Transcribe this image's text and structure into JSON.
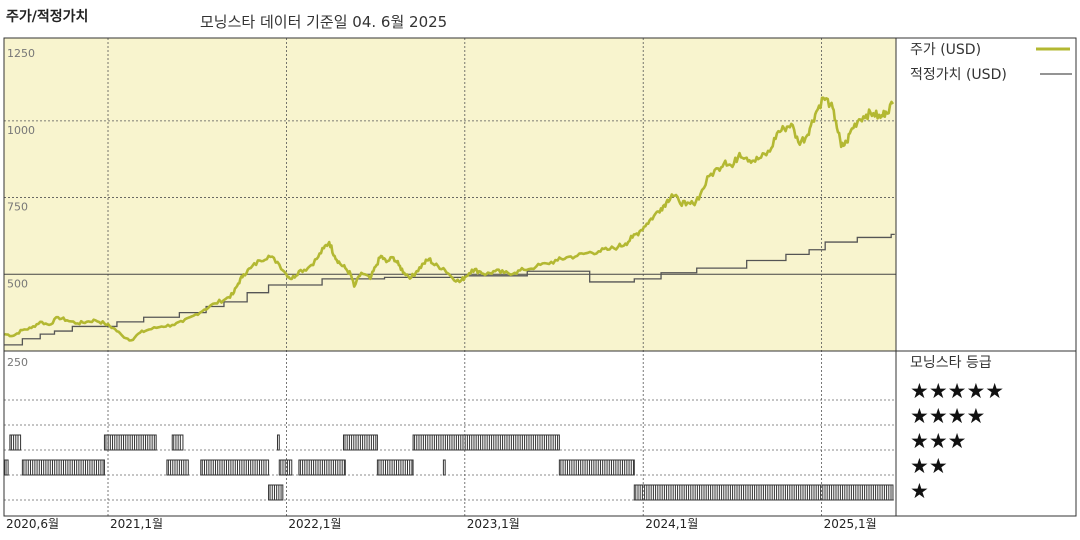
{
  "header": {
    "title": "주가/적정가치",
    "subtitle": "모닝스타 데이터 기준일 04. 6월 2025"
  },
  "legend": {
    "price_label": "주가 (USD)",
    "fair_label": "적정가치 (USD)",
    "rating_title": "모닝스타 등급",
    "stars": [
      "★★★★★",
      "★★★★",
      "★★★",
      "★★",
      "★"
    ]
  },
  "colors": {
    "price": "#b3b832",
    "fair": "#555555",
    "plot_bg": "#f8f4ce",
    "grid": "#555555",
    "bar": "#333333"
  },
  "chart_data": {
    "type": "line",
    "y_ticks": [
      "1250",
      "1000",
      "750",
      "500",
      "250"
    ],
    "ylim": [
      250,
      1270
    ],
    "x_ticks": [
      {
        "label": "2020,6월",
        "t": 2020.417
      },
      {
        "label": "2021,1월",
        "t": 2021.0
      },
      {
        "label": "2022,1월",
        "t": 2022.0
      },
      {
        "label": "2023,1월",
        "t": 2023.0
      },
      {
        "label": "2024,1월",
        "t": 2024.0
      },
      {
        "label": "2025,1월",
        "t": 2025.0
      }
    ],
    "xlim": [
      2020.417,
      2025.417
    ],
    "series": [
      {
        "name": "주가 (USD)",
        "points": [
          [
            2020.42,
            305
          ],
          [
            2020.47,
            300
          ],
          [
            2020.52,
            318
          ],
          [
            2020.57,
            325
          ],
          [
            2020.62,
            345
          ],
          [
            2020.67,
            335
          ],
          [
            2020.72,
            360
          ],
          [
            2020.77,
            350
          ],
          [
            2020.83,
            340
          ],
          [
            2020.88,
            345
          ],
          [
            2020.93,
            350
          ],
          [
            2020.98,
            340
          ],
          [
            2021.03,
            325
          ],
          [
            2021.08,
            300
          ],
          [
            2021.13,
            285
          ],
          [
            2021.18,
            310
          ],
          [
            2021.23,
            320
          ],
          [
            2021.3,
            330
          ],
          [
            2021.36,
            335
          ],
          [
            2021.42,
            345
          ],
          [
            2021.48,
            365
          ],
          [
            2021.54,
            385
          ],
          [
            2021.6,
            405
          ],
          [
            2021.66,
            420
          ],
          [
            2021.7,
            435
          ],
          [
            2021.73,
            470
          ],
          [
            2021.76,
            500
          ],
          [
            2021.8,
            520
          ],
          [
            2021.85,
            545
          ],
          [
            2021.9,
            560
          ],
          [
            2021.95,
            540
          ],
          [
            2022.0,
            500
          ],
          [
            2022.03,
            485
          ],
          [
            2022.07,
            510
          ],
          [
            2022.12,
            520
          ],
          [
            2022.17,
            550
          ],
          [
            2022.21,
            585
          ],
          [
            2022.24,
            605
          ],
          [
            2022.27,
            560
          ],
          [
            2022.3,
            535
          ],
          [
            2022.33,
            520
          ],
          [
            2022.36,
            500
          ],
          [
            2022.38,
            460
          ],
          [
            2022.42,
            505
          ],
          [
            2022.47,
            485
          ],
          [
            2022.5,
            525
          ],
          [
            2022.53,
            560
          ],
          [
            2022.56,
            540
          ],
          [
            2022.6,
            555
          ],
          [
            2022.63,
            530
          ],
          [
            2022.66,
            505
          ],
          [
            2022.7,
            490
          ],
          [
            2022.73,
            510
          ],
          [
            2022.77,
            535
          ],
          [
            2022.8,
            550
          ],
          [
            2022.83,
            530
          ],
          [
            2022.88,
            520
          ],
          [
            2022.92,
            495
          ],
          [
            2022.97,
            475
          ],
          [
            2023.0,
            490
          ],
          [
            2023.04,
            515
          ],
          [
            2023.08,
            510
          ],
          [
            2023.12,
            500
          ],
          [
            2023.17,
            510
          ],
          [
            2023.22,
            505
          ],
          [
            2023.28,
            505
          ],
          [
            2023.33,
            515
          ],
          [
            2023.4,
            525
          ],
          [
            2023.46,
            535
          ],
          [
            2023.52,
            545
          ],
          [
            2023.57,
            555
          ],
          [
            2023.63,
            560
          ],
          [
            2023.69,
            570
          ],
          [
            2023.75,
            575
          ],
          [
            2023.8,
            580
          ],
          [
            2023.86,
            590
          ],
          [
            2023.9,
            600
          ],
          [
            2023.94,
            620
          ],
          [
            2023.98,
            640
          ],
          [
            2024.02,
            665
          ],
          [
            2024.06,
            690
          ],
          [
            2024.1,
            715
          ],
          [
            2024.13,
            735
          ],
          [
            2024.16,
            760
          ],
          [
            2024.2,
            740
          ],
          [
            2024.24,
            725
          ],
          [
            2024.28,
            730
          ],
          [
            2024.32,
            760
          ],
          [
            2024.37,
            820
          ],
          [
            2024.42,
            845
          ],
          [
            2024.46,
            870
          ],
          [
            2024.5,
            850
          ],
          [
            2024.54,
            895
          ],
          [
            2024.58,
            880
          ],
          [
            2024.62,
            870
          ],
          [
            2024.66,
            880
          ],
          [
            2024.71,
            900
          ],
          [
            2024.75,
            960
          ],
          [
            2024.79,
            975
          ],
          [
            2024.83,
            990
          ],
          [
            2024.87,
            930
          ],
          [
            2024.91,
            945
          ],
          [
            2024.94,
            985
          ],
          [
            2024.97,
            1030
          ],
          [
            2025.01,
            1075
          ],
          [
            2025.05,
            1055
          ],
          [
            2025.08,
            1000
          ],
          [
            2025.11,
            915
          ],
          [
            2025.14,
            930
          ],
          [
            2025.17,
            975
          ],
          [
            2025.21,
            1005
          ],
          [
            2025.25,
            1020
          ],
          [
            2025.29,
            1025
          ],
          [
            2025.33,
            1010
          ],
          [
            2025.36,
            1030
          ],
          [
            2025.4,
            1055
          ]
        ]
      },
      {
        "name": "적정가치 (USD)",
        "steps": [
          [
            2020.42,
            270
          ],
          [
            2020.52,
            290
          ],
          [
            2020.62,
            305
          ],
          [
            2020.7,
            315
          ],
          [
            2020.8,
            330
          ],
          [
            2021.05,
            345
          ],
          [
            2021.2,
            360
          ],
          [
            2021.4,
            375
          ],
          [
            2021.55,
            395
          ],
          [
            2021.65,
            410
          ],
          [
            2021.78,
            440
          ],
          [
            2021.9,
            465
          ],
          [
            2022.2,
            485
          ],
          [
            2022.55,
            490
          ],
          [
            2023.0,
            495
          ],
          [
            2023.35,
            510
          ],
          [
            2023.7,
            475
          ],
          [
            2023.95,
            485
          ],
          [
            2024.1,
            505
          ],
          [
            2024.3,
            520
          ],
          [
            2024.58,
            545
          ],
          [
            2024.8,
            565
          ],
          [
            2024.93,
            580
          ],
          [
            2025.02,
            605
          ],
          [
            2025.2,
            620
          ],
          [
            2025.39,
            630
          ]
        ]
      }
    ],
    "rating_runs": [
      {
        "stars": 3,
        "runs": [
          [
            2020.45,
            2020.51
          ],
          [
            2020.98,
            2021.27
          ],
          [
            2021.36,
            2021.42
          ],
          [
            2021.95,
            2021.96
          ],
          [
            2022.32,
            2022.51
          ],
          [
            2022.71,
            2023.53
          ]
        ]
      },
      {
        "stars": 2,
        "runs": [
          [
            2020.42,
            2020.44
          ],
          [
            2020.52,
            2020.98
          ],
          [
            2021.33,
            2021.45
          ],
          [
            2021.52,
            2021.9
          ],
          [
            2021.96,
            2022.03
          ],
          [
            2022.07,
            2022.33
          ],
          [
            2022.51,
            2022.71
          ],
          [
            2022.88,
            2022.89
          ],
          [
            2023.53,
            2023.95
          ]
        ]
      },
      {
        "stars": 1,
        "runs": [
          [
            2021.9,
            2021.98
          ],
          [
            2023.95,
            2025.4
          ]
        ]
      }
    ]
  }
}
